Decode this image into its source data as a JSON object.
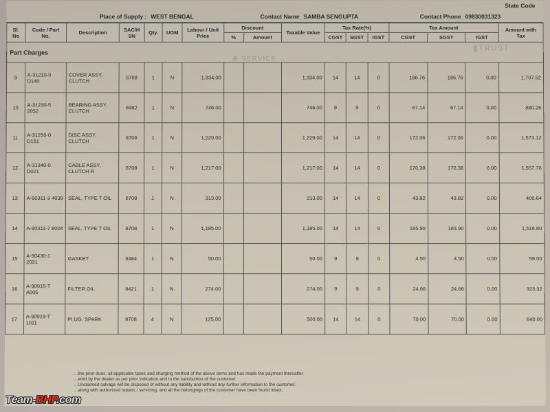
{
  "header": {
    "state_code_label": "State Code",
    "place_of_supply_label": "Place of Supply :",
    "place_of_supply": "WEST BENGAL",
    "contact_name_label": "Contact Name",
    "contact_name": "SAMBA SENGUPTA",
    "contact_phone_label": "Contact Phone",
    "contact_phone": "09830031323"
  },
  "columns": {
    "sl": "Sl. No",
    "code": "Code / Part No.",
    "desc": "Description",
    "sac": "SAC/H SN",
    "qty": "Qty.",
    "uom": "UOM",
    "labour_unit": "Labour / Unit Price",
    "discount": "Discount",
    "disc_pct": "%",
    "disc_amt": "Amount",
    "taxable": "Taxable Value",
    "tax_rate": "Tax Rate(%)",
    "tax_amount": "Tax Amount",
    "cgst": "CGST",
    "sgst": "SGST",
    "igst": "IGST",
    "amount_with_tax": "Amount with Tax"
  },
  "section_title": "Part Charges",
  "rows": [
    {
      "sl": "9",
      "code": "A-31210-0 D140",
      "desc": "COVER ASSY, CLUTCH",
      "sac": "8708",
      "qty": "1",
      "uom": "N",
      "lup": "1,334.00",
      "taxable": "1,334.00",
      "cgr": "14",
      "sgr": "14",
      "igr": "0",
      "cga": "186.76",
      "sga": "186.76",
      "iga": "0.00",
      "amt": "1,707.52"
    },
    {
      "sl": "10",
      "code": "A-31230-5 2052",
      "desc": "BEARING ASSY, CLUTCH",
      "sac": "8482",
      "qty": "1",
      "uom": "N",
      "lup": "746.00",
      "taxable": "746.00",
      "cgr": "9",
      "sgr": "9",
      "igr": "0",
      "cga": "67.14",
      "sga": "67.14",
      "iga": "0.00",
      "amt": "880.28"
    },
    {
      "sl": "11",
      "code": "A-31250-0 D151",
      "desc": "DISC ASSY, CLUTCH",
      "sac": "8708",
      "qty": "1",
      "uom": "N",
      "lup": "1,229.00",
      "taxable": "1,229.00",
      "cgr": "14",
      "sgr": "14",
      "igr": "0",
      "cga": "172.06",
      "sga": "172.06",
      "iga": "0.00",
      "amt": "1,573.12"
    },
    {
      "sl": "12",
      "code": "A-31340-0 D021",
      "desc": "CABLE ASSY, CLUTCH R",
      "sac": "8708",
      "qty": "1",
      "uom": "N",
      "lup": "1,217.00",
      "taxable": "1,217.00",
      "cgr": "14",
      "sgr": "14",
      "igr": "0",
      "cga": "170.38",
      "sga": "170.38",
      "iga": "0.00",
      "amt": "1,557.76"
    },
    {
      "sl": "13",
      "code": "A-90311-3 4039",
      "desc": "SEAL, TYPE T OIL",
      "sac": "8708",
      "qty": "1",
      "uom": "N",
      "lup": "313.00",
      "taxable": "313.00",
      "cgr": "14",
      "sgr": "14",
      "igr": "0",
      "cga": "43.82",
      "sga": "43.82",
      "iga": "0.00",
      "amt": "400.64"
    },
    {
      "sl": "14",
      "code": "A-90311-7 8004",
      "desc": "SEAL, TYPE T OIL",
      "sac": "8708",
      "qty": "1",
      "uom": "N",
      "lup": "1,185.00",
      "taxable": "1,185.00",
      "cgr": "14",
      "sgr": "14",
      "igr": "0",
      "cga": "165.90",
      "sga": "165.90",
      "iga": "0.00",
      "amt": "1,516.80"
    },
    {
      "sl": "15",
      "code": "A-90430-1 2031",
      "desc": "GASKET",
      "sac": "8484",
      "qty": "1",
      "uom": "N",
      "lup": "50.00",
      "taxable": "50.00",
      "cgr": "9",
      "sgr": "9",
      "igr": "0",
      "cga": "4.50",
      "sga": "4.50",
      "iga": "0.00",
      "amt": "59.00"
    },
    {
      "sl": "16",
      "code": "A-90915-T A005",
      "desc": "FILTER OIL",
      "sac": "8421",
      "qty": "1",
      "uom": "N",
      "lup": "274.00",
      "taxable": "274.00",
      "cgr": "9",
      "sgr": "9",
      "igr": "0",
      "cga": "24.66",
      "sga": "24.66",
      "iga": "0.00",
      "amt": "323.32"
    },
    {
      "sl": "17",
      "code": "A-90919-T 1011",
      "desc": "PLUG, SPARK",
      "sac": "8708",
      "qty": "4",
      "uom": "N",
      "lup": "125.00",
      "taxable": "500.00",
      "cgr": "14",
      "sgr": "14",
      "igr": "0",
      "cga": "70.00",
      "sga": "70.00",
      "iga": "0.00",
      "amt": "640.00"
    }
  ],
  "footer": {
    "line1": "…the prior dues, all applicable taxes and charging method of the above items and has made the payment thereafter.",
    "line2": "…ered by the dealer as per prior indication and to the satisfaction of the customer.",
    "line3": "…Unclaimed salvage will be disposed of without any liability and without any further information to the customer.",
    "line4": "…along with authorized repairs / servicing, and all the belongings of the customer have been found intact."
  },
  "stamps": {
    "service": "⊕ SERVICE",
    "trust": "▮TRUST"
  },
  "watermark": {
    "brand": "Team-",
    "accent": "BHP",
    "suffix": ".com"
  }
}
